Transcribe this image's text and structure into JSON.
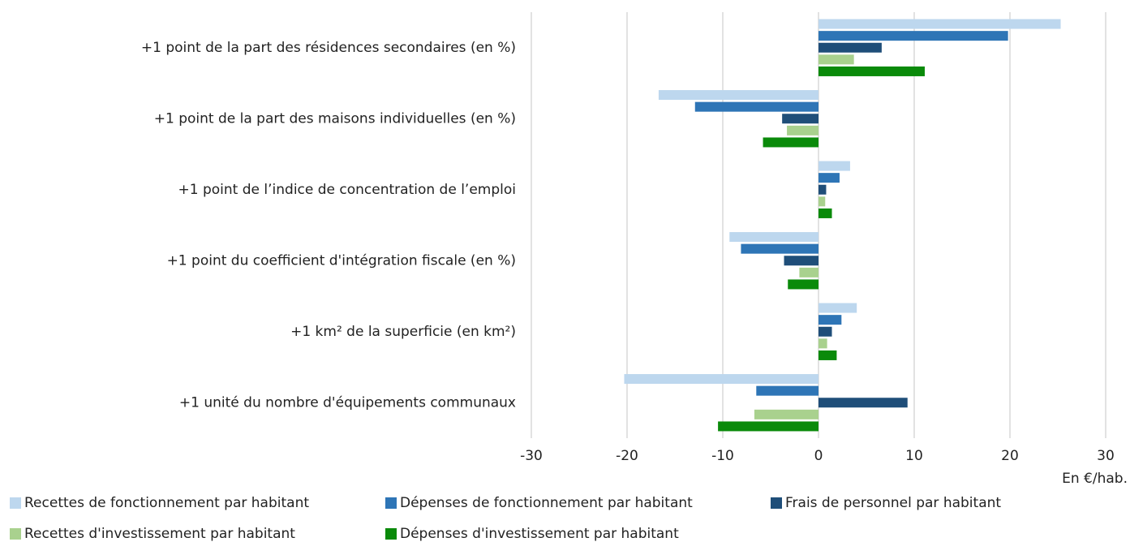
{
  "chart_data": {
    "type": "barh",
    "categories": [
      "+1 point de la part des résidences secondaires (en %)",
      "+1 point de la part des maisons individuelles (en %)",
      "+1 point de l’indice de concentration de l’emploi",
      "+1 point du coefficient d'intégration fiscale (en %)",
      "+1 km² de la superficie (en km²)",
      "+1 unité du nombre d'équipements communaux"
    ],
    "series": [
      {
        "name": "Recettes de fonctionnement par habitant",
        "color": "#bdd7ee",
        "values": [
          25.3,
          -16.7,
          3.3,
          -9.3,
          4.0,
          -20.3
        ]
      },
      {
        "name": "Dépenses de fonctionnement par habitant",
        "color": "#2e75b6",
        "values": [
          19.8,
          -12.9,
          2.2,
          -8.1,
          2.4,
          -6.5
        ]
      },
      {
        "name": "Frais de personnel par habitant",
        "color": "#1f4e79",
        "values": [
          6.6,
          -3.8,
          0.8,
          -3.6,
          1.4,
          9.3
        ]
      },
      {
        "name": "Recettes d'investissement par habitant",
        "color": "#a9d18e",
        "values": [
          3.7,
          -3.3,
          0.7,
          -2.0,
          0.9,
          -6.7
        ]
      },
      {
        "name": "Dépenses d'investissement par habitant",
        "color": "#0a8a0a",
        "values": [
          11.1,
          -5.8,
          1.4,
          -3.2,
          1.9,
          -10.5
        ]
      }
    ],
    "x_label": "En €/hab.",
    "xlim": [
      -30,
      30
    ],
    "xticks": [
      -30,
      -20,
      -10,
      0,
      10,
      20,
      30
    ],
    "grid": true
  }
}
